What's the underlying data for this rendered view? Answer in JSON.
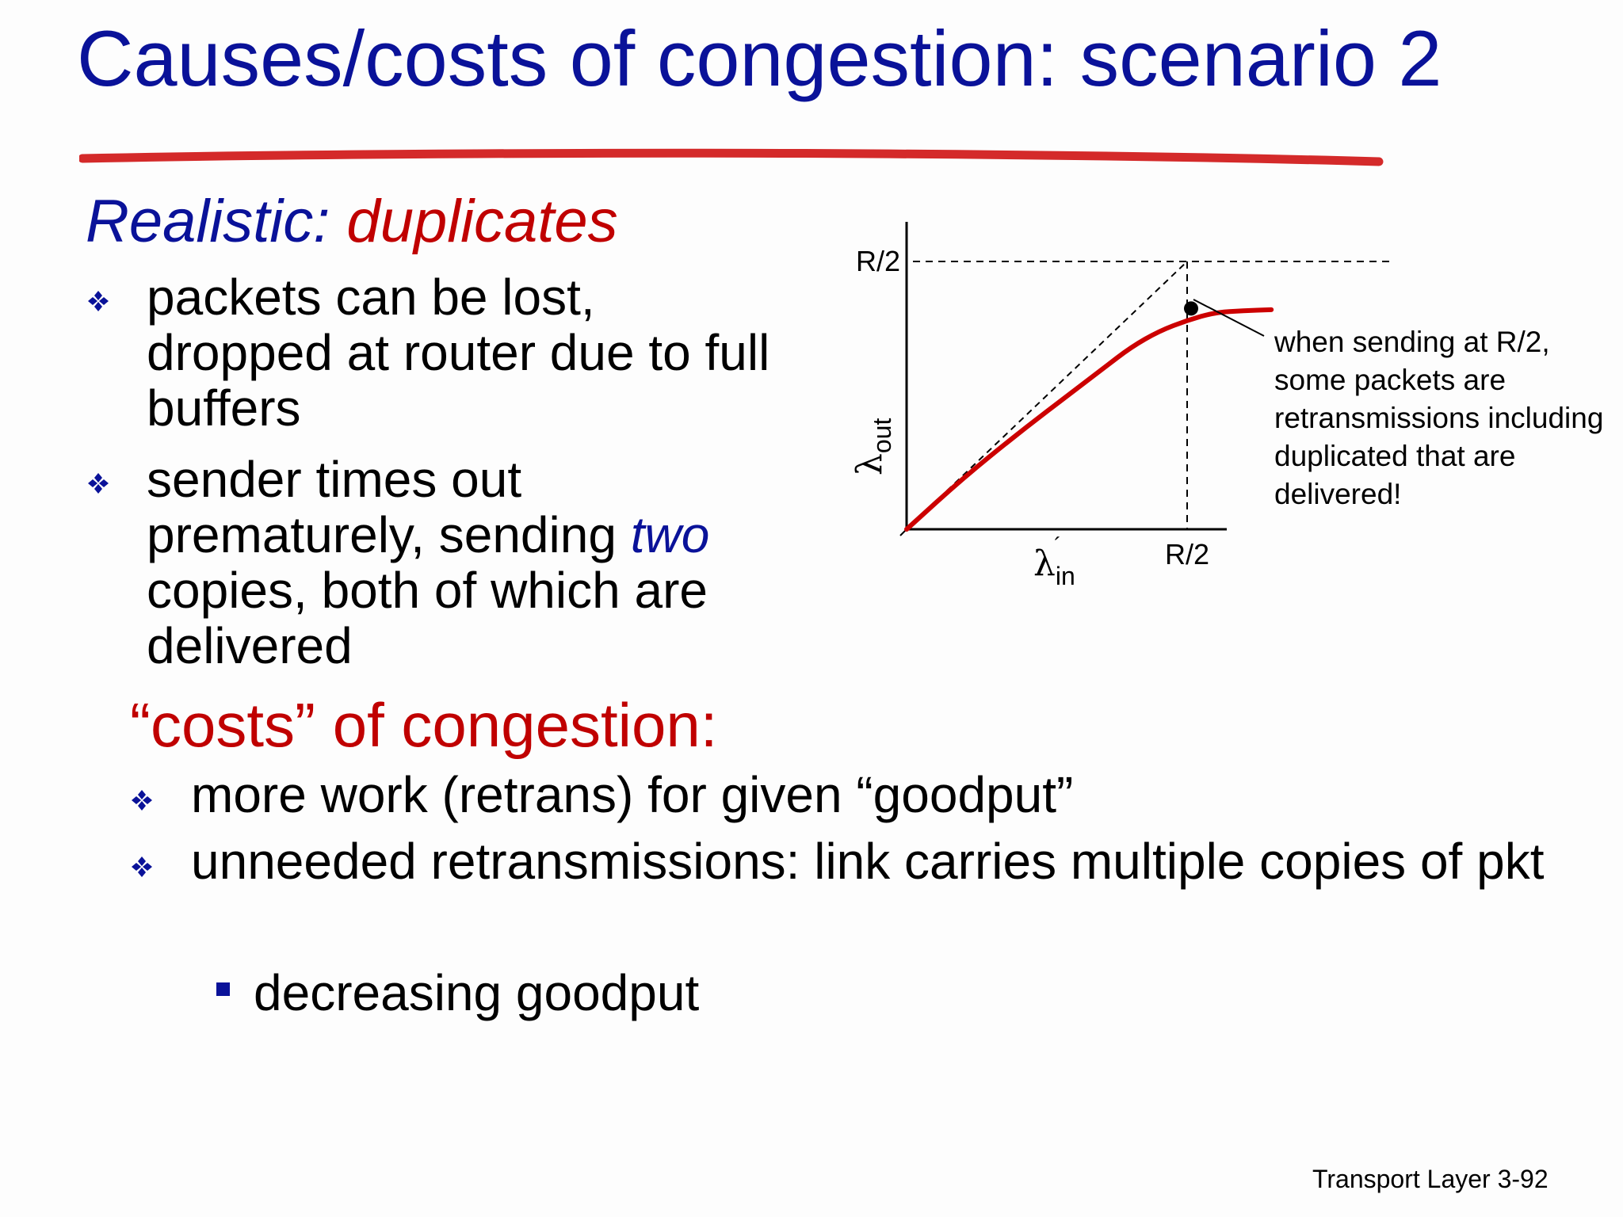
{
  "title": "Causes/costs of congestion: scenario 2",
  "subtitle": {
    "prefix": "Realistic: ",
    "highlight": "duplicates"
  },
  "bullets": [
    {
      "text": "packets can be lost, dropped at router due  to full buffers"
    },
    {
      "before": "sender times out prematurely, sending ",
      "emphasis": "two",
      "after": " copies, both of which are delivered"
    }
  ],
  "costs": {
    "heading_open_quote": "“",
    "heading_word": "costs",
    "heading_close_quote": "”",
    "heading_rest": " of congestion:",
    "items": [
      "more work (retrans) for given “goodput”",
      "unneeded retransmissions: link carries multiple copies of pkt"
    ],
    "sub_item": "decreasing goodput"
  },
  "annotation": "when sending at R/2, some packets are retransmissions including duplicated that are delivered!",
  "footer": "Transport Layer 3-92",
  "colors": {
    "title": "#0a1299",
    "accent_red": "#c00000",
    "curve": "#cc0000"
  },
  "chart_data": {
    "type": "line",
    "x_label_symbol": "λ",
    "x_label_sub": "in",
    "y_label_symbol": "λ",
    "y_label_sub": "out",
    "x_tick_label": "R/2",
    "y_tick_label": "R/2",
    "x": [
      0,
      0.1,
      0.2,
      0.3,
      0.35,
      0.4,
      0.45,
      0.5,
      0.55,
      0.6,
      0.65
    ],
    "y": [
      0,
      0.095,
      0.18,
      0.26,
      0.3,
      0.34,
      0.37,
      0.39,
      0.405,
      0.408,
      0.41
    ],
    "marked_point": {
      "x": 0.5,
      "y": 0.43
    },
    "xlim": [
      0,
      0.6
    ],
    "ylim": [
      0,
      0.5
    ]
  }
}
